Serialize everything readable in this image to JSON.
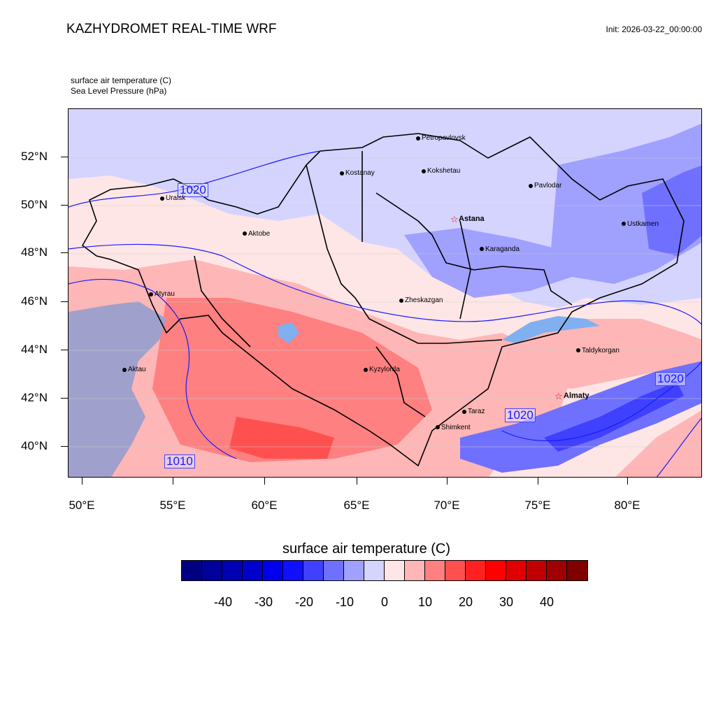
{
  "header": {
    "title": "KAZHYDROMET REAL-TIME WRF",
    "init": "Init: 2026-03-22_00:00:00"
  },
  "fields": {
    "field1": "surface air temperature   (C)",
    "field2": "Sea Level Pressure   (hPa)"
  },
  "axes": {
    "lat_labels": [
      "52°N",
      "50°N",
      "48°N",
      "46°N",
      "44°N",
      "42°N",
      "40°N"
    ],
    "lon_labels": [
      "50°E",
      "55°E",
      "60°E",
      "65°E",
      "70°E",
      "75°E",
      "80°E"
    ]
  },
  "cities": [
    {
      "name": "Petropavlovsk",
      "capital": false
    },
    {
      "name": "Kostanay",
      "capital": false
    },
    {
      "name": "Kokshetau",
      "capital": false
    },
    {
      "name": "Pavlodar",
      "capital": false
    },
    {
      "name": "Uralsk",
      "capital": false
    },
    {
      "name": "Astana",
      "capital": true
    },
    {
      "name": "Aktobe",
      "capital": false
    },
    {
      "name": "Ustkamen",
      "capital": false
    },
    {
      "name": "Karaganda",
      "capital": false
    },
    {
      "name": "Atyrau",
      "capital": false
    },
    {
      "name": "Zheskazgan",
      "capital": false
    },
    {
      "name": "Taldykorgan",
      "capital": false
    },
    {
      "name": "Aktau",
      "capital": false
    },
    {
      "name": "Kyzylorda",
      "capital": false
    },
    {
      "name": "Almaty",
      "capital": true
    },
    {
      "name": "Taraz",
      "capital": false
    },
    {
      "name": "Shimkent",
      "capital": false
    }
  ],
  "isobar_labels": [
    "1020",
    "1020",
    "1020",
    "1010"
  ],
  "colorbar": {
    "title": "surface air temperature  (C)",
    "labels": [
      "-40",
      "-30",
      "-20",
      "-10",
      "0",
      "10",
      "20",
      "30",
      "40"
    ],
    "colors": [
      "#000080",
      "#00009a",
      "#0000b4",
      "#0000cd",
      "#0000f0",
      "#1010ff",
      "#4040ff",
      "#7070ff",
      "#a0a0ff",
      "#d4d4ff",
      "#ffe6e6",
      "#ffb6b6",
      "#ff8080",
      "#ff5050",
      "#ff2020",
      "#ff0000",
      "#e00000",
      "#c00000",
      "#a00000",
      "#800000"
    ]
  }
}
